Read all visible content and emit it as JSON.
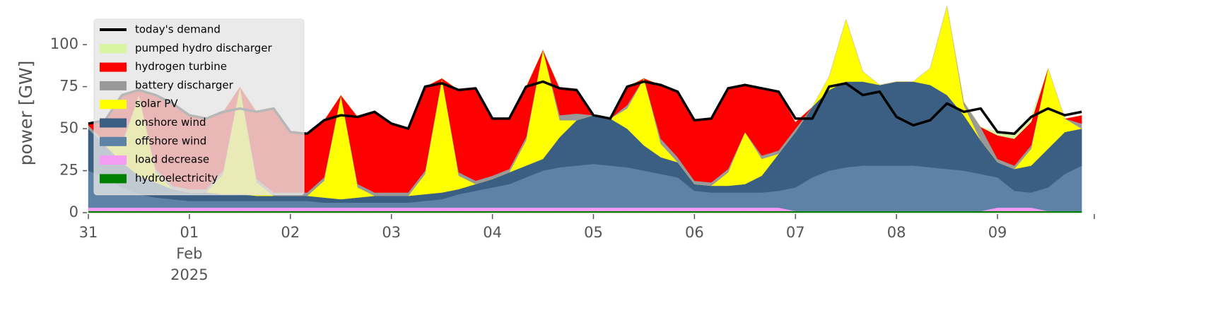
{
  "chart_data": {
    "type": "stacked_area",
    "y_label": "power [GW]",
    "x": [
      0,
      4,
      8,
      12,
      16,
      20,
      24,
      28,
      32,
      36,
      40,
      44,
      48,
      52,
      56,
      60,
      64,
      68,
      72,
      76,
      80,
      84,
      88,
      92,
      96,
      100,
      104,
      108,
      112,
      116,
      120,
      124,
      128,
      132,
      136,
      140,
      144,
      148,
      152,
      156,
      160,
      164,
      168,
      172,
      176,
      180,
      184,
      188,
      192,
      196,
      200,
      204,
      208,
      212,
      216,
      220,
      224,
      228,
      232,
      236
    ],
    "xlim": [
      0,
      239
    ],
    "xticks": [
      {
        "value": 0,
        "label": "31"
      },
      {
        "value": 24,
        "label": "01"
      },
      {
        "value": 48,
        "label": "02"
      },
      {
        "value": 72,
        "label": "03"
      },
      {
        "value": 96,
        "label": "04"
      },
      {
        "value": 120,
        "label": "05"
      },
      {
        "value": 144,
        "label": "06"
      },
      {
        "value": 168,
        "label": "07"
      },
      {
        "value": 192,
        "label": "08"
      },
      {
        "value": 216,
        "label": "09"
      },
      {
        "value": 239,
        "label": ""
      }
    ],
    "xtick_sublabels": [
      "Feb",
      "2025"
    ],
    "ylim": [
      0,
      119
    ],
    "yticks": [
      0,
      25,
      50,
      75,
      100
    ],
    "legend": "upper left",
    "demand": {
      "name": "today's demand",
      "color": "#000000",
      "values": [
        53,
        55,
        70,
        73,
        70,
        65,
        58,
        56,
        60,
        62,
        60,
        62,
        48,
        47,
        55,
        58,
        57,
        60,
        53,
        50,
        75,
        77,
        73,
        74,
        56,
        56,
        75,
        78,
        74,
        73,
        58,
        56,
        75,
        78,
        76,
        72,
        55,
        56,
        74,
        76,
        74,
        72,
        56,
        56,
        75,
        77,
        70,
        72,
        57,
        52,
        55,
        65,
        60,
        62,
        48,
        47,
        57,
        62,
        58,
        60
      ]
    },
    "series": [
      {
        "name": "pumped hydro discharger",
        "color": "#d8f5a2",
        "values": [
          0,
          0,
          0,
          0,
          0,
          0,
          0,
          0,
          0,
          0,
          0,
          0,
          0,
          0,
          0,
          0,
          0,
          0,
          0,
          0,
          0,
          0,
          0,
          0,
          0,
          0,
          0,
          0,
          0,
          0,
          0,
          0,
          0,
          0,
          0,
          0,
          0,
          0,
          0,
          0,
          0,
          0,
          0,
          0,
          0,
          0,
          0,
          0,
          0,
          0,
          0,
          0,
          0,
          0,
          2,
          3,
          3,
          0,
          0,
          0
        ]
      },
      {
        "name": "hydrogen turbine",
        "color": "#ff0000",
        "values": [
          1,
          13,
          28,
          3,
          44,
          49,
          44,
          42,
          35,
          0,
          40,
          50,
          36,
          35,
          34,
          0,
          40,
          48,
          41,
          38,
          50,
          0,
          49,
          55,
          34,
          30,
          30,
          0,
          16,
          14,
          0,
          0,
          11,
          0,
          32,
          39,
          36,
          38,
          48,
          28,
          40,
          35,
          4,
          0,
          0,
          0,
          0,
          0,
          0,
          0,
          0,
          0,
          0,
          0,
          14,
          16,
          14,
          0,
          0,
          5
        ]
      },
      {
        "name": "battery discharger",
        "color": "#999999",
        "values": [
          2,
          2,
          2,
          0,
          2,
          2,
          2,
          2,
          2,
          0,
          2,
          2,
          2,
          2,
          2,
          0,
          2,
          2,
          2,
          2,
          2,
          0,
          2,
          2,
          2,
          2,
          2,
          0,
          3,
          4,
          0,
          0,
          2,
          0,
          3,
          3,
          2,
          2,
          2,
          0,
          2,
          2,
          2,
          0,
          0,
          0,
          0,
          0,
          0,
          0,
          0,
          0,
          2,
          8,
          2,
          2,
          2,
          0,
          0,
          3
        ]
      },
      {
        "name": "solar PV",
        "color": "#ffff00",
        "values": [
          0,
          0,
          10,
          48,
          6,
          0,
          0,
          0,
          12,
          64,
          8,
          0,
          0,
          0,
          10,
          62,
          6,
          0,
          0,
          0,
          12,
          68,
          8,
          0,
          0,
          0,
          15,
          65,
          10,
          0,
          0,
          0,
          12,
          40,
          8,
          0,
          0,
          0,
          8,
          31,
          10,
          0,
          0,
          0,
          8,
          37,
          6,
          0,
          0,
          0,
          10,
          53,
          6,
          0,
          0,
          0,
          10,
          48,
          8,
          0
        ]
      },
      {
        "name": "onshore wind",
        "color": "#3a5f82",
        "values": [
          25,
          19,
          15,
          11,
          9,
          6,
          5,
          5,
          4,
          4,
          3,
          3,
          3,
          3,
          3,
          2,
          3,
          4,
          4,
          4,
          4,
          4,
          3,
          4,
          5,
          7,
          7,
          7,
          18,
          27,
          29,
          28,
          23,
          15,
          10,
          9,
          4,
          4,
          4,
          5,
          10,
          22,
          33,
          42,
          48,
          51,
          50,
          48,
          50,
          50,
          49,
          44,
          33,
          20,
          9,
          13,
          16,
          23,
          25,
          22
        ]
      },
      {
        "name": "offshore wind",
        "color": "#5d82a6",
        "values": [
          22,
          18,
          12,
          8,
          6,
          5,
          4,
          4,
          4,
          4,
          4,
          4,
          4,
          4,
          3,
          3,
          3,
          3,
          3,
          3,
          4,
          5,
          8,
          10,
          12,
          14,
          18,
          22,
          24,
          25,
          26,
          25,
          24,
          22,
          20,
          18,
          10,
          9,
          9,
          9,
          9,
          10,
          14,
          20,
          24,
          26,
          27,
          27,
          27,
          27,
          26,
          25,
          24,
          22,
          18,
          10,
          9,
          14,
          22,
          27
        ]
      },
      {
        "name": "load decrease",
        "color": "#f59af5",
        "values": [
          2,
          2,
          2,
          2,
          2,
          2,
          2,
          2,
          2,
          2,
          2,
          2,
          2,
          2,
          2,
          2,
          2,
          2,
          2,
          2,
          2,
          2,
          2,
          2,
          2,
          2,
          2,
          2,
          2,
          2,
          2,
          2,
          2,
          2,
          2,
          2,
          2,
          2,
          2,
          2,
          2,
          2,
          0,
          0,
          0,
          0,
          0,
          0,
          0,
          0,
          0,
          0,
          0,
          0,
          2,
          2,
          2,
          0,
          0,
          0
        ]
      },
      {
        "name": "hydroelectricity",
        "color": "#008000",
        "values": [
          1,
          1,
          1,
          1,
          1,
          1,
          1,
          1,
          1,
          1,
          1,
          1,
          1,
          1,
          1,
          1,
          1,
          1,
          1,
          1,
          1,
          1,
          1,
          1,
          1,
          1,
          1,
          1,
          1,
          1,
          1,
          1,
          1,
          1,
          1,
          1,
          1,
          1,
          1,
          1,
          1,
          1,
          1,
          1,
          1,
          1,
          1,
          1,
          1,
          1,
          1,
          1,
          1,
          1,
          1,
          1,
          1,
          1,
          1,
          1
        ]
      }
    ]
  }
}
